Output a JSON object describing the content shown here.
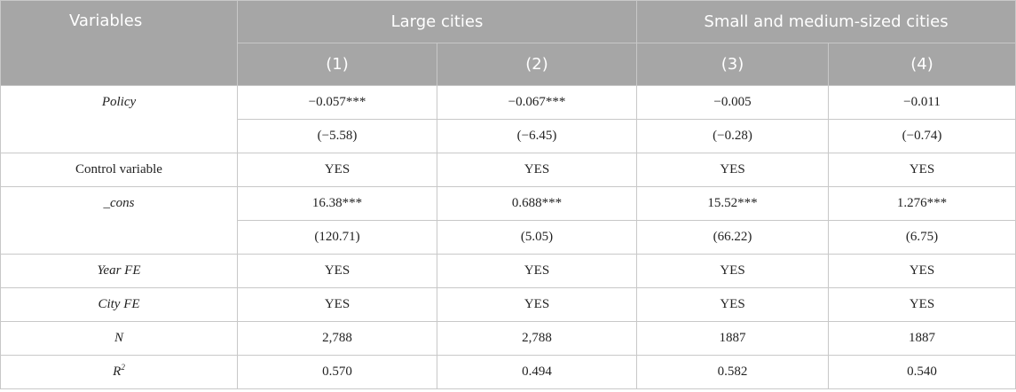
{
  "header": {
    "variables_label": "Variables",
    "group_large": "Large cities",
    "group_small": "Small and medium-sized cities",
    "cols": [
      "(1)",
      "(2)",
      "(3)",
      "(4)"
    ]
  },
  "rows": {
    "policy": {
      "label": "Policy",
      "coef": [
        "−0.057***",
        "−0.067***",
        "−0.005",
        "−0.011"
      ],
      "tstat": [
        "(−5.58)",
        "(−6.45)",
        "(−0.28)",
        "(−0.74)"
      ]
    },
    "control": {
      "label": "Control variable",
      "values": [
        "YES",
        "YES",
        "YES",
        "YES"
      ]
    },
    "cons": {
      "label": "_cons",
      "coef": [
        "16.38***",
        "0.688***",
        "15.52***",
        "1.276***"
      ],
      "tstat": [
        "(120.71)",
        "(5.05)",
        "(66.22)",
        "(6.75)"
      ]
    },
    "year_fe": {
      "label": "Year FE",
      "values": [
        "YES",
        "YES",
        "YES",
        "YES"
      ]
    },
    "city_fe": {
      "label": "City FE",
      "values": [
        "YES",
        "YES",
        "YES",
        "YES"
      ]
    },
    "n": {
      "label": "N",
      "values": [
        "2,788",
        "2,788",
        "1887",
        "1887"
      ]
    },
    "r2": {
      "label": "R",
      "label_sup": "2",
      "values": [
        "0.570",
        "0.494",
        "0.582",
        "0.540"
      ]
    }
  }
}
